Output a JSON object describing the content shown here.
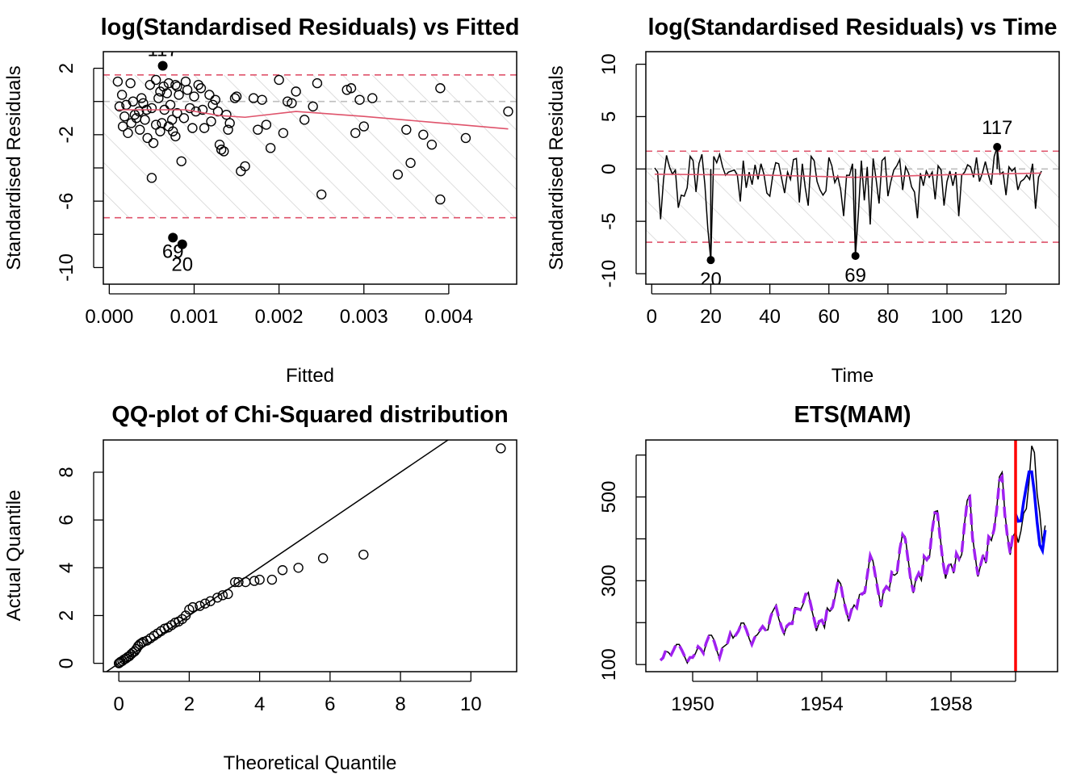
{
  "chart_data": [
    {
      "type": "scatter",
      "title": "log(Standardised Residuals) vs Fitted",
      "xlabel": "Fitted",
      "ylabel": "Standardised Residuals",
      "xlim": [
        -7e-05,
        0.0048
      ],
      "ylim": [
        -11,
        3
      ],
      "xticks": [
        0.0,
        0.001,
        0.002,
        0.003,
        0.004
      ],
      "xtick_labels": [
        "0.000",
        "0.001",
        "0.002",
        "0.003",
        "0.004"
      ],
      "yticks": [
        2,
        0,
        -2,
        -4,
        -6,
        -8,
        -10
      ],
      "ytick_labels": [
        "2",
        "",
        "-2",
        "",
        "-6",
        "",
        "-10"
      ],
      "bounds": [
        1.6,
        -7.0
      ],
      "zero_line": 0,
      "outliers": [
        {
          "label": "117",
          "x": 0.00063,
          "y": 2.15
        },
        {
          "label": "69",
          "x": 0.00075,
          "y": -8.2
        },
        {
          "label": "20",
          "x": 0.00086,
          "y": -8.6
        }
      ],
      "points": [
        [
          0.0001,
          1.2
        ],
        [
          0.00015,
          0.4
        ],
        [
          0.0002,
          -0.2
        ],
        [
          0.00025,
          1.1
        ],
        [
          0.0003,
          -0.8
        ],
        [
          0.00035,
          -0.6
        ],
        [
          0.0004,
          -0.1
        ],
        [
          0.00045,
          -2.2
        ],
        [
          0.0005,
          -4.6
        ],
        [
          0.00055,
          1.3
        ],
        [
          0.0006,
          0.6
        ],
        [
          0.00065,
          -0.5
        ],
        [
          0.0007,
          1.1
        ],
        [
          0.00075,
          -1.8
        ],
        [
          0.0008,
          0.9
        ],
        [
          0.00085,
          -3.6
        ],
        [
          0.0009,
          1.2
        ],
        [
          0.00095,
          -0.4
        ],
        [
          0.001,
          0.3
        ],
        [
          0.00105,
          1.0
        ],
        [
          0.0011,
          -0.5
        ],
        [
          0.0012,
          -1.2
        ],
        [
          0.00125,
          0.1
        ],
        [
          0.0013,
          -2.6
        ],
        [
          0.00135,
          -3.0
        ],
        [
          0.0014,
          -1.7
        ],
        [
          0.0015,
          0.3
        ],
        [
          0.00155,
          -4.2
        ],
        [
          0.0016,
          -3.9
        ],
        [
          0.0017,
          0.2
        ],
        [
          0.00175,
          -1.7
        ],
        [
          0.0018,
          0.1
        ],
        [
          0.00185,
          -1.4
        ],
        [
          0.0019,
          -2.8
        ],
        [
          0.002,
          1.3
        ],
        [
          0.00205,
          -1.9
        ],
        [
          0.0021,
          0.0
        ],
        [
          0.00215,
          -0.1
        ],
        [
          0.0022,
          0.6
        ],
        [
          0.0023,
          -1.1
        ],
        [
          0.0024,
          -0.3
        ],
        [
          0.00245,
          1.1
        ],
        [
          0.0025,
          -5.6
        ],
        [
          0.0028,
          0.7
        ],
        [
          0.00285,
          0.8
        ],
        [
          0.0029,
          -1.9
        ],
        [
          0.00295,
          0.1
        ],
        [
          0.003,
          -1.5
        ],
        [
          0.0031,
          0.2
        ],
        [
          0.0034,
          -4.4
        ],
        [
          0.0035,
          -1.7
        ],
        [
          0.00355,
          -3.7
        ],
        [
          0.0037,
          -2.0
        ],
        [
          0.0038,
          -2.6
        ],
        [
          0.0039,
          -5.9
        ],
        [
          0.0039,
          0.8
        ],
        [
          0.0042,
          -2.2
        ],
        [
          0.0047,
          -0.6
        ],
        [
          0.00012,
          -0.3
        ],
        [
          0.00018,
          -0.9
        ],
        [
          0.00022,
          -1.9
        ],
        [
          0.00028,
          0.0
        ],
        [
          0.00032,
          -1.0
        ],
        [
          0.00038,
          0.2
        ],
        [
          0.00042,
          -1.1
        ],
        [
          0.00048,
          1.0
        ],
        [
          0.00052,
          -2.5
        ],
        [
          0.00058,
          0.2
        ],
        [
          0.00062,
          -1.3
        ],
        [
          0.00068,
          0.5
        ],
        [
          0.00072,
          -0.2
        ],
        [
          0.00078,
          -2.1
        ],
        [
          0.00082,
          0.4
        ],
        [
          0.00088,
          -1.0
        ],
        [
          0.00092,
          0.7
        ],
        [
          0.00098,
          -1.6
        ],
        [
          0.00102,
          -0.6
        ],
        [
          0.00108,
          0.8
        ],
        [
          0.00112,
          -1.6
        ],
        [
          0.00118,
          0.4
        ],
        [
          0.00122,
          -0.2
        ],
        [
          0.00128,
          -0.6
        ],
        [
          0.00132,
          -2.9
        ],
        [
          0.00138,
          -0.8
        ],
        [
          0.00142,
          -1.3
        ],
        [
          0.00148,
          0.2
        ],
        [
          0.0005,
          -0.4
        ],
        [
          0.00055,
          -1.4
        ],
        [
          0.0006,
          -1.8
        ],
        [
          0.0007,
          -1.5
        ],
        [
          0.00074,
          -1.1
        ],
        [
          0.00078,
          1.0
        ],
        [
          0.00044,
          -0.5
        ],
        [
          0.00036,
          -1.7
        ],
        [
          0.00026,
          -1.3
        ],
        [
          0.00016,
          -1.5
        ],
        [
          0.0008,
          -0.7
        ],
        [
          0.00064,
          0.9
        ]
      ],
      "smooth": [
        [
          0.0001,
          -0.5
        ],
        [
          0.0009,
          -0.5
        ],
        [
          0.0013,
          -0.85
        ],
        [
          0.0016,
          -0.95
        ],
        [
          0.0022,
          -0.6
        ],
        [
          0.003,
          -0.9
        ],
        [
          0.0038,
          -1.25
        ],
        [
          0.0047,
          -1.65
        ]
      ]
    },
    {
      "type": "line",
      "title": "log(Standardised Residuals) vs Time",
      "xlabel": "Time",
      "ylabel": "Standardised Residuals",
      "xlim": [
        -2,
        138
      ],
      "ylim": [
        -11,
        11.2
      ],
      "xticks": [
        0,
        20,
        40,
        60,
        80,
        100,
        120
      ],
      "yticks": [
        10,
        5,
        0,
        -5,
        -10
      ],
      "bounds": [
        1.7,
        -7.0
      ],
      "zero_line": 0,
      "outliers": [
        {
          "label": "20",
          "x": 20,
          "y": -8.7
        },
        {
          "label": "69",
          "x": 69,
          "y": -8.3
        },
        {
          "label": "117",
          "x": 117,
          "y": 2.1
        }
      ],
      "values": [
        0.1,
        -0.3,
        -4.8,
        -1.0,
        1.3,
        0.2,
        -0.5,
        -0.1,
        -3.7,
        -2.5,
        -2.6,
        -1.8,
        1.2,
        0.8,
        -2.2,
        0.5,
        1.4,
        -1.5,
        -5.7,
        -8.7,
        1.2,
        0.6,
        1.4,
        0.2,
        -0.6,
        -0.3,
        -0.2,
        -0.1,
        -0.6,
        -3.1,
        0.8,
        -1.8,
        -0.3,
        -1.5,
        0.4,
        -1.0,
        0.5,
        -0.5,
        -2.3,
        -2.6,
        -0.6,
        0.6,
        0.5,
        -0.9,
        -2.3,
        -0.3,
        -1.0,
        0.9,
        1.0,
        -3.2,
        0.5,
        -1.8,
        -3.5,
        1.2,
        0.8,
        -1.2,
        -2.0,
        -2.5,
        -2.1,
        1.1,
        0.3,
        -1.3,
        -0.7,
        -2.0,
        -4.5,
        -0.6,
        -0.6,
        0.5,
        -8.3,
        -4.2,
        0.8,
        -3.0,
        0.2,
        -5.3,
        1.0,
        -1.0,
        -3.3,
        0.8,
        1.1,
        -2.6,
        -1.2,
        -0.1,
        0.3,
        0.9,
        -2.0,
        0.2,
        -0.4,
        -1.7,
        -2.2,
        -4.7,
        -0.4,
        -1.6,
        -0.2,
        -0.8,
        -0.3,
        -2.9,
        0.3,
        -0.1,
        -3.5,
        -1.2,
        -0.2,
        -1.6,
        -0.3,
        -4.5,
        -0.6,
        -0.3,
        0.4,
        0.2,
        -0.8,
        1.1,
        -1.2,
        -0.4,
        0.7,
        -0.5,
        -1.5,
        1.2,
        2.1,
        -0.5,
        -0.3,
        -2.5,
        0.2,
        -0.2,
        0.1,
        -2.0,
        -1.2,
        -1.0,
        -0.6,
        -1.0,
        0.5,
        -3.8,
        -0.8,
        -0.2
      ],
      "smooth": [
        [
          1,
          -0.5
        ],
        [
          40,
          -0.6
        ],
        [
          69,
          -0.8
        ],
        [
          100,
          -0.55
        ],
        [
          132,
          -0.4
        ]
      ]
    },
    {
      "type": "scatter",
      "title": "QQ-plot of Chi-Squared distribution",
      "xlabel": "Theoretical Quantile",
      "ylabel": "Actual Quantile",
      "xlim": [
        -0.44,
        11.3
      ],
      "ylim": [
        -0.35,
        9.35
      ],
      "xticks": [
        0,
        2,
        4,
        6,
        8,
        10
      ],
      "yticks": [
        0,
        2,
        4,
        6,
        8
      ],
      "reference_line": "y = x",
      "points": [
        [
          0,
          0
        ],
        [
          0.02,
          0.02
        ],
        [
          0.05,
          0.06
        ],
        [
          0.1,
          0.1
        ],
        [
          0.15,
          0.16
        ],
        [
          0.2,
          0.2
        ],
        [
          0.25,
          0.26
        ],
        [
          0.3,
          0.3
        ],
        [
          0.35,
          0.38
        ],
        [
          0.4,
          0.45
        ],
        [
          0.45,
          0.5
        ],
        [
          0.5,
          0.6
        ],
        [
          0.55,
          0.72
        ],
        [
          0.6,
          0.8
        ],
        [
          0.65,
          0.85
        ],
        [
          0.7,
          0.9
        ],
        [
          0.8,
          0.95
        ],
        [
          0.9,
          1.05
        ],
        [
          1.0,
          1.15
        ],
        [
          1.1,
          1.25
        ],
        [
          1.2,
          1.35
        ],
        [
          1.3,
          1.45
        ],
        [
          1.4,
          1.5
        ],
        [
          1.5,
          1.6
        ],
        [
          1.6,
          1.7
        ],
        [
          1.7,
          1.75
        ],
        [
          1.8,
          1.85
        ],
        [
          1.9,
          2.0
        ],
        [
          2.0,
          2.25
        ],
        [
          2.1,
          2.35
        ],
        [
          2.3,
          2.4
        ],
        [
          2.45,
          2.5
        ],
        [
          2.6,
          2.6
        ],
        [
          2.8,
          2.75
        ],
        [
          2.95,
          2.85
        ],
        [
          3.1,
          2.9
        ],
        [
          3.3,
          3.4
        ],
        [
          3.4,
          3.4
        ],
        [
          3.6,
          3.4
        ],
        [
          3.85,
          3.45
        ],
        [
          4.0,
          3.5
        ],
        [
          4.35,
          3.5
        ],
        [
          4.65,
          3.9
        ],
        [
          5.1,
          4.0
        ],
        [
          5.8,
          4.4
        ],
        [
          6.95,
          4.55
        ],
        [
          10.85,
          9.0
        ]
      ]
    },
    {
      "type": "line",
      "title": "ETS(MAM)",
      "xlim": [
        1948.55,
        1961.3
      ],
      "ylim": [
        83,
        636
      ],
      "xticks": [
        1950,
        1952,
        1954,
        1956,
        1958,
        1960
      ],
      "xtick_labels": [
        "1950",
        "",
        "1954",
        "",
        "1958",
        ""
      ],
      "yticks": [
        100,
        200,
        300,
        400,
        500,
        600
      ],
      "ytick_labels": [
        "100",
        "",
        "300",
        "",
        "500",
        ""
      ],
      "start": 1949,
      "frequency": 12,
      "holdout_start": 1960,
      "actual": [
        112,
        118,
        132,
        129,
        121,
        135,
        148,
        148,
        136,
        119,
        104,
        118,
        115,
        126,
        141,
        135,
        125,
        149,
        170,
        170,
        158,
        133,
        114,
        140,
        145,
        150,
        178,
        163,
        172,
        178,
        199,
        199,
        184,
        162,
        146,
        166,
        171,
        180,
        193,
        181,
        183,
        218,
        230,
        242,
        209,
        191,
        172,
        194,
        196,
        196,
        236,
        235,
        229,
        243,
        264,
        272,
        237,
        211,
        180,
        201,
        204,
        188,
        235,
        227,
        234,
        264,
        302,
        293,
        259,
        229,
        203,
        229,
        242,
        233,
        267,
        269,
        270,
        315,
        364,
        347,
        312,
        274,
        237,
        278,
        284,
        277,
        317,
        313,
        318,
        374,
        413,
        405,
        355,
        306,
        271,
        306,
        315,
        301,
        356,
        348,
        355,
        422,
        465,
        467,
        404,
        347,
        305,
        336,
        340,
        318,
        362,
        348,
        363,
        435,
        491,
        505,
        404,
        359,
        310,
        337,
        360,
        342,
        406,
        396,
        420,
        472,
        548,
        559,
        463,
        407,
        362,
        405,
        417,
        391,
        419,
        461,
        472,
        535,
        622,
        606,
        508,
        461,
        390,
        432
      ],
      "fitted": [
        110,
        116,
        134,
        128,
        123,
        136,
        150,
        146,
        134,
        120,
        106,
        117,
        117,
        127,
        143,
        137,
        127,
        151,
        167,
        168,
        155,
        134,
        116,
        138,
        146,
        152,
        175,
        166,
        170,
        180,
        196,
        197,
        182,
        163,
        148,
        164,
        172,
        182,
        191,
        183,
        186,
        214,
        232,
        238,
        212,
        190,
        174,
        192,
        198,
        198,
        232,
        233,
        231,
        246,
        268,
        268,
        240,
        212,
        184,
        203,
        206,
        192,
        234,
        228,
        237,
        268,
        298,
        292,
        256,
        230,
        206,
        230,
        244,
        236,
        270,
        268,
        274,
        318,
        360,
        345,
        308,
        272,
        240,
        276,
        286,
        280,
        320,
        315,
        322,
        376,
        410,
        400,
        352,
        304,
        274,
        304,
        318,
        304,
        358,
        350,
        360,
        420,
        462,
        460,
        400,
        345,
        308,
        335,
        342,
        322,
        365,
        352,
        368,
        432,
        488,
        498,
        402,
        356,
        314,
        338,
        362,
        346,
        405,
        398,
        422,
        470,
        540,
        548,
        458,
        404,
        366,
        408
      ],
      "forecast": [
        459,
        442,
        443,
        488,
        525,
        560,
        560,
        510,
        440,
        385,
        372,
        421
      ],
      "colors": {
        "actual": "#000000",
        "fitted": "#A020F0",
        "forecast": "#0000FF",
        "holdout_line": "#FF0000"
      }
    }
  ]
}
